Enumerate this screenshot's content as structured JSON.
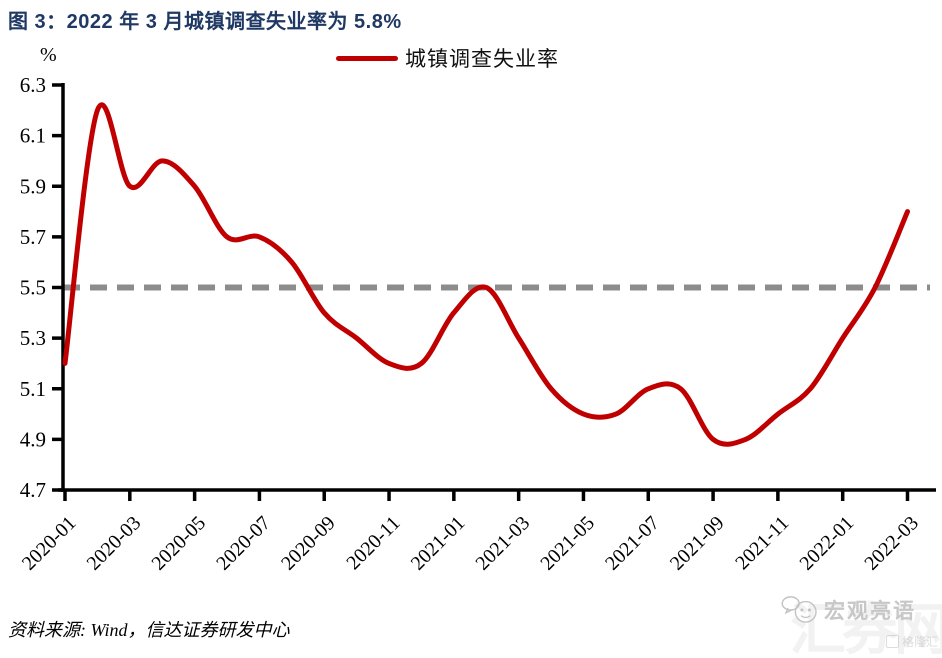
{
  "title": {
    "text": "图 3：2022 年 3 月城镇调查失业率为 5.8%"
  },
  "legend": {
    "series_label": "城镇调查失业率"
  },
  "axes": {
    "y_unit": "%"
  },
  "footer": {
    "source": "资料来源: Wind，信达证券研发中心"
  },
  "watermark": {
    "logo": "panda-chat-icon",
    "brand": "宏观亮语",
    "backdrop": "汇券网",
    "badge": "格隆汇"
  },
  "colors": {
    "title": "#1f3864",
    "line": "#c00000",
    "reference_line": "#8c8c8c",
    "axis": "#000000"
  },
  "chart_data": {
    "type": "line",
    "title": "2022 年 3 月城镇调查失业率为 5.8%",
    "xlabel": "",
    "ylabel": "%",
    "grid": false,
    "legend_position": "top-center",
    "ylim": [
      4.7,
      6.3
    ],
    "ytick_step": 0.2,
    "x": [
      "2020-01",
      "2020-02",
      "2020-03",
      "2020-04",
      "2020-05",
      "2020-06",
      "2020-07",
      "2020-08",
      "2020-09",
      "2020-10",
      "2020-11",
      "2020-12",
      "2021-01",
      "2021-02",
      "2021-03",
      "2021-04",
      "2021-05",
      "2021-06",
      "2021-07",
      "2021-08",
      "2021-09",
      "2021-10",
      "2021-11",
      "2021-12",
      "2022-01",
      "2022-02",
      "2022-03"
    ],
    "xtick_labels": [
      "2020-01",
      "2020-03",
      "2020-05",
      "2020-07",
      "2020-09",
      "2020-11",
      "2021-01",
      "2021-03",
      "2021-05",
      "2021-07",
      "2021-09",
      "2021-11",
      "2022-01",
      "2022-03"
    ],
    "series": [
      {
        "name": "城镇调查失业率",
        "color": "#c00000",
        "values": [
          5.2,
          6.2,
          5.9,
          6.0,
          5.9,
          5.7,
          5.7,
          5.6,
          5.4,
          5.3,
          5.2,
          5.2,
          5.4,
          5.5,
          5.3,
          5.1,
          5.0,
          5.0,
          5.1,
          5.1,
          4.9,
          4.9,
          5.0,
          5.1,
          5.3,
          5.5,
          5.8
        ]
      }
    ],
    "reference_line": {
      "value": 5.5,
      "style": "dashed",
      "color": "#8c8c8c"
    }
  }
}
